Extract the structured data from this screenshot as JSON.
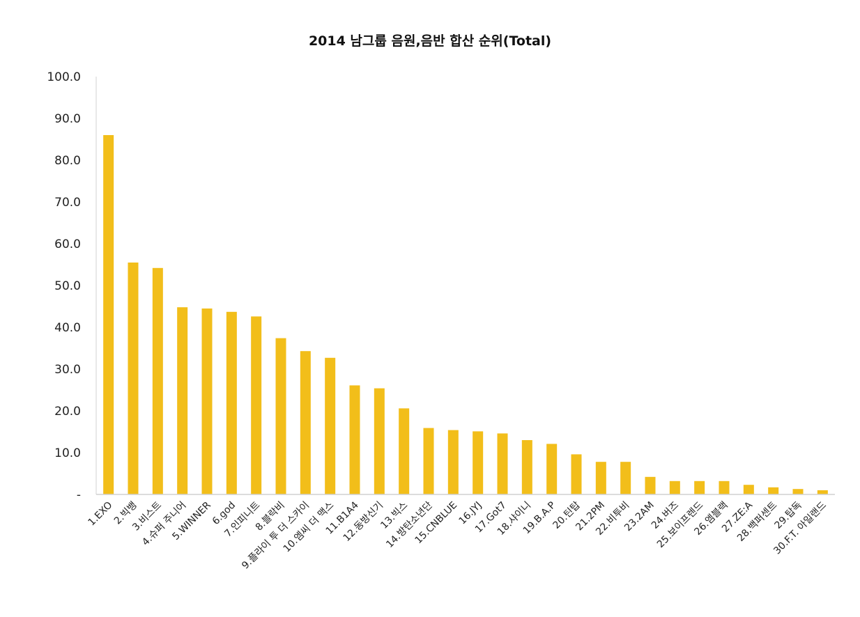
{
  "chart_data": {
    "type": "bar",
    "title": "2014 남그룹 음원,음반 합산 순위(Total)",
    "xlabel": "",
    "ylabel": "",
    "ylim": [
      0,
      100
    ],
    "ytick_labels": [
      "-",
      "10.0",
      "20.0",
      "30.0",
      "40.0",
      "50.0",
      "60.0",
      "70.0",
      "80.0",
      "90.0",
      "100.0"
    ],
    "grid": false,
    "legend": "none",
    "bar_color": "#f2be1a",
    "categories": [
      "1.EXO",
      "2.빅뱅",
      "3.비스트",
      "4.슈퍼 주니어",
      "5.WINNER",
      "6.god",
      "7.인피니트",
      "8.블락비",
      "9.플라이 투 더 스카이",
      "10.엠씨 더 맥스",
      "11.B1A4",
      "12.동방신기",
      "13.빅스",
      "14.방탄소년단",
      "15.CNBLUE",
      "16.JYJ",
      "17.Got7",
      "18.샤이니",
      "19.B.A.P",
      "20.틴탑",
      "21.2PM",
      "22.비투비",
      "23.2AM",
      "24.버즈",
      "25.보이프렌드",
      "26.엠블랙",
      "27.ZE:A",
      "28.백퍼센트",
      "29.탑독",
      "30.F.T. 아일랜드"
    ],
    "values": [
      86.0,
      55.5,
      54.2,
      44.8,
      44.5,
      43.7,
      42.6,
      37.4,
      34.3,
      32.7,
      26.1,
      25.4,
      20.6,
      15.9,
      15.4,
      15.1,
      14.6,
      13.0,
      12.1,
      9.6,
      7.8,
      7.8,
      4.2,
      3.2,
      3.2,
      3.2,
      2.3,
      1.7,
      1.3,
      1.0
    ]
  }
}
